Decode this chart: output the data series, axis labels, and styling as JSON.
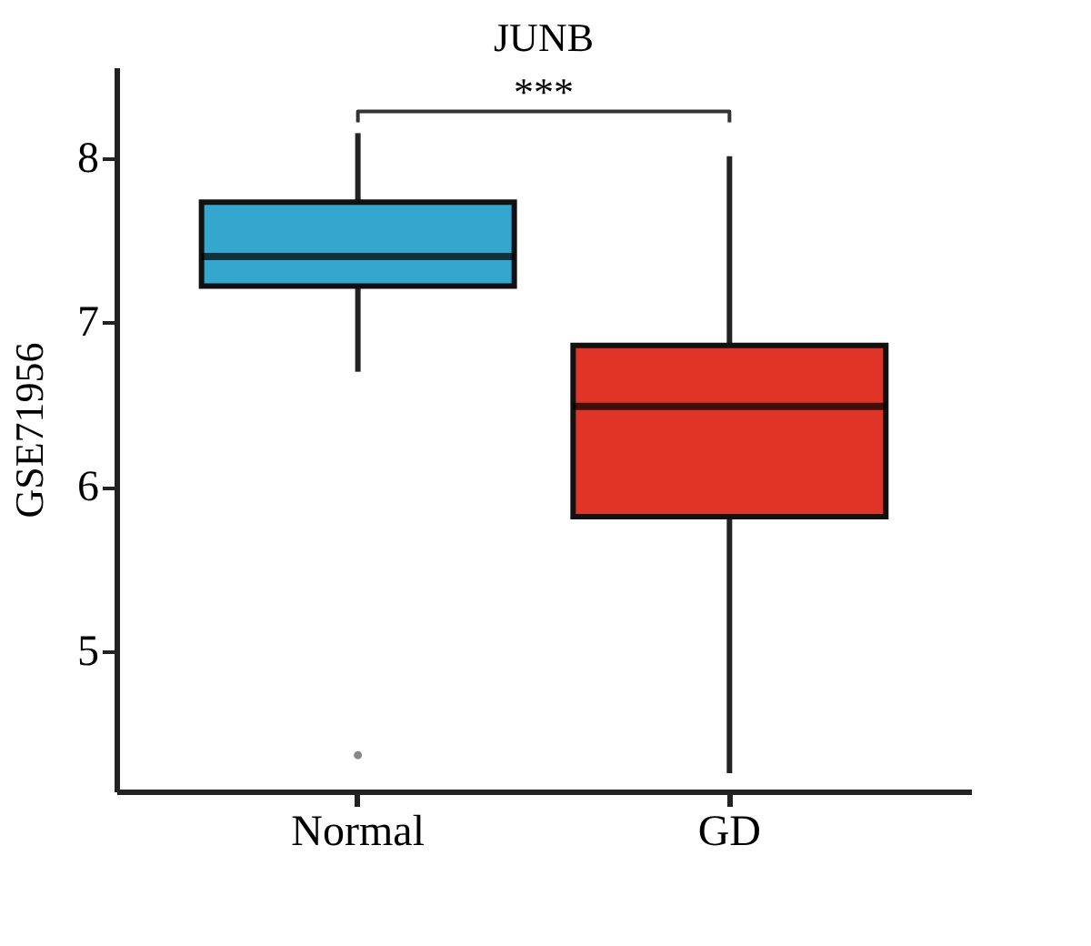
{
  "chart_data": {
    "type": "box",
    "title": "JUNB",
    "ylabel": "GSE71956",
    "categories": [
      "Normal",
      "GD"
    ],
    "boxes": [
      {
        "low": 6.7,
        "q1": 7.22,
        "median": 7.4,
        "q3": 7.73,
        "high": 8.15,
        "outliers": [
          4.37
        ]
      },
      {
        "low": 4.26,
        "q1": 5.82,
        "median": 6.49,
        "q3": 6.86,
        "high": 8.01
      }
    ],
    "colors": [
      "#35a7cf",
      "#e03426"
    ],
    "ylim": [
      4.15,
      8.55
    ],
    "yticks": [
      5,
      6,
      7,
      8
    ],
    "grid": false,
    "legend": false,
    "annotations": [
      "***"
    ]
  }
}
